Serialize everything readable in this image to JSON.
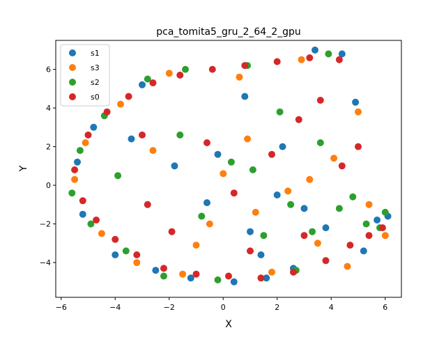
{
  "chart_data": {
    "type": "scatter",
    "title": "pca_tomita5_gru_2_64_2_gpu",
    "xlabel": "X",
    "ylabel": "Y",
    "xlim": [
      -6.2,
      6.6
    ],
    "ylim": [
      -5.8,
      7.5
    ],
    "xticks": [
      -6,
      -4,
      -2,
      0,
      2,
      4,
      6
    ],
    "yticks": [
      -4,
      -2,
      0,
      2,
      4,
      6
    ],
    "xtick_labels": [
      "−6",
      "−4",
      "−2",
      "0",
      "2",
      "4",
      "6"
    ],
    "ytick_labels": [
      "−4",
      "−2",
      "0",
      "2",
      "4",
      "6"
    ],
    "grid": false,
    "legend_position": "top-left",
    "series": [
      {
        "name": "s1",
        "color": "#1f77b4",
        "points": [
          [
            -5.4,
            1.2
          ],
          [
            -5.2,
            -1.5
          ],
          [
            -4.8,
            3.0
          ],
          [
            -4.0,
            -3.6
          ],
          [
            -3.0,
            5.2
          ],
          [
            -2.5,
            -4.4
          ],
          [
            -1.2,
            -4.8
          ],
          [
            -0.6,
            -0.9
          ],
          [
            -0.2,
            1.6
          ],
          [
            0.4,
            -5.0
          ],
          [
            1.0,
            -2.4
          ],
          [
            1.4,
            -3.6
          ],
          [
            2.0,
            -0.5
          ],
          [
            2.6,
            -4.3
          ],
          [
            3.0,
            -1.2
          ],
          [
            3.4,
            7.0
          ],
          [
            3.8,
            -2.2
          ],
          [
            4.4,
            6.8
          ],
          [
            4.9,
            4.3
          ],
          [
            5.2,
            -3.4
          ],
          [
            5.7,
            -1.8
          ],
          [
            6.1,
            -1.6
          ],
          [
            -3.4,
            2.4
          ],
          [
            0.8,
            4.6
          ],
          [
            2.2,
            2.0
          ],
          [
            -1.8,
            1.0
          ],
          [
            1.6,
            -4.8
          ]
        ]
      },
      {
        "name": "s3",
        "color": "#ff7f0e",
        "points": [
          [
            -5.5,
            0.3
          ],
          [
            -5.1,
            2.2
          ],
          [
            -4.5,
            -2.5
          ],
          [
            -3.8,
            4.2
          ],
          [
            -3.2,
            -4.0
          ],
          [
            -2.0,
            5.8
          ],
          [
            -1.5,
            -4.6
          ],
          [
            -0.5,
            -2.0
          ],
          [
            0.0,
            0.6
          ],
          [
            0.6,
            5.6
          ],
          [
            1.2,
            -1.4
          ],
          [
            1.8,
            -4.5
          ],
          [
            2.4,
            -0.3
          ],
          [
            2.9,
            6.5
          ],
          [
            3.5,
            -3.0
          ],
          [
            4.1,
            1.4
          ],
          [
            4.6,
            -4.2
          ],
          [
            5.0,
            3.8
          ],
          [
            5.4,
            -1.0
          ],
          [
            6.0,
            -2.6
          ],
          [
            -2.6,
            1.8
          ],
          [
            0.9,
            2.4
          ],
          [
            3.2,
            0.3
          ],
          [
            -1.0,
            -3.1
          ]
        ]
      },
      {
        "name": "s2",
        "color": "#2ca02c",
        "points": [
          [
            -5.6,
            -0.4
          ],
          [
            -5.3,
            1.8
          ],
          [
            -4.9,
            -2.0
          ],
          [
            -4.4,
            3.6
          ],
          [
            -3.6,
            -3.4
          ],
          [
            -2.8,
            5.5
          ],
          [
            -2.2,
            -4.7
          ],
          [
            -1.4,
            6.0
          ],
          [
            -0.8,
            -1.6
          ],
          [
            -0.2,
            -4.9
          ],
          [
            0.3,
            1.2
          ],
          [
            0.9,
            6.2
          ],
          [
            1.5,
            -2.6
          ],
          [
            2.1,
            3.8
          ],
          [
            2.7,
            -4.4
          ],
          [
            3.3,
            -2.4
          ],
          [
            3.9,
            6.8
          ],
          [
            4.3,
            -1.2
          ],
          [
            4.8,
            -0.6
          ],
          [
            5.3,
            -2.0
          ],
          [
            5.8,
            -2.2
          ],
          [
            6.0,
            -1.4
          ],
          [
            -3.9,
            0.5
          ],
          [
            1.1,
            0.8
          ],
          [
            2.5,
            -1.0
          ],
          [
            -1.6,
            2.6
          ],
          [
            3.6,
            2.2
          ]
        ]
      },
      {
        "name": "s0",
        "color": "#d62728",
        "points": [
          [
            -5.5,
            0.8
          ],
          [
            -5.2,
            -0.8
          ],
          [
            -5.0,
            2.6
          ],
          [
            -4.7,
            -1.8
          ],
          [
            -4.3,
            3.8
          ],
          [
            -4.0,
            -2.8
          ],
          [
            -3.5,
            4.6
          ],
          [
            -3.2,
            -3.6
          ],
          [
            -2.6,
            5.3
          ],
          [
            -2.2,
            -4.3
          ],
          [
            -1.6,
            5.7
          ],
          [
            -1.0,
            -4.6
          ],
          [
            -0.4,
            6.0
          ],
          [
            0.2,
            -4.7
          ],
          [
            0.8,
            6.2
          ],
          [
            1.4,
            -4.8
          ],
          [
            2.0,
            6.4
          ],
          [
            2.6,
            -4.5
          ],
          [
            3.2,
            6.6
          ],
          [
            3.8,
            -3.9
          ],
          [
            4.3,
            6.5
          ],
          [
            4.7,
            -3.1
          ],
          [
            5.0,
            2.0
          ],
          [
            5.4,
            -2.6
          ],
          [
            5.9,
            -2.2
          ],
          [
            -2.8,
            -1.0
          ],
          [
            -1.9,
            -2.4
          ],
          [
            -0.6,
            2.2
          ],
          [
            0.4,
            -0.4
          ],
          [
            1.8,
            1.6
          ],
          [
            2.8,
            3.4
          ],
          [
            3.6,
            4.4
          ],
          [
            4.4,
            1.0
          ],
          [
            -3.0,
            2.6
          ],
          [
            1.0,
            -3.4
          ],
          [
            3.0,
            -2.6
          ]
        ]
      }
    ]
  }
}
